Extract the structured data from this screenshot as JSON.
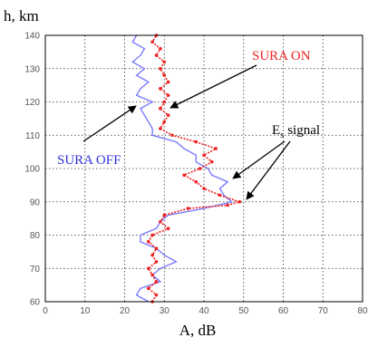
{
  "chart_data": {
    "type": "line",
    "ylabel": "h, km",
    "xlabel": "A, dB",
    "xlim": [
      0,
      80
    ],
    "ylim": [
      60,
      140
    ],
    "xticks": [
      "0",
      "10",
      "20",
      "30",
      "40",
      "50",
      "60",
      "70",
      "80"
    ],
    "yticks": [
      "60",
      "70",
      "80",
      "90",
      "100",
      "110",
      "120",
      "130",
      "140"
    ],
    "grid": true,
    "series": [
      {
        "name": "SURA OFF",
        "color": "#7b7bff",
        "points": [
          [
            26,
            60
          ],
          [
            23,
            62
          ],
          [
            24,
            64
          ],
          [
            29,
            66
          ],
          [
            27,
            68
          ],
          [
            29,
            70
          ],
          [
            33,
            72
          ],
          [
            30,
            74
          ],
          [
            28,
            76
          ],
          [
            24,
            78
          ],
          [
            24,
            80
          ],
          [
            28,
            82
          ],
          [
            29,
            84
          ],
          [
            31,
            86
          ],
          [
            40,
            88
          ],
          [
            47,
            90
          ],
          [
            45,
            92
          ],
          [
            44,
            94
          ],
          [
            46,
            96
          ],
          [
            42,
            98
          ],
          [
            41,
            100
          ],
          [
            38,
            102
          ],
          [
            38,
            104
          ],
          [
            35,
            106
          ],
          [
            33,
            108
          ],
          [
            27,
            110
          ],
          [
            27,
            112
          ],
          [
            26,
            114
          ],
          [
            25,
            116
          ],
          [
            24,
            118
          ],
          [
            27,
            120
          ],
          [
            23,
            122
          ],
          [
            24,
            124
          ],
          [
            26,
            126
          ],
          [
            23,
            128
          ],
          [
            25,
            130
          ],
          [
            22,
            132
          ],
          [
            24,
            134
          ],
          [
            25,
            136
          ],
          [
            22,
            138
          ],
          [
            23,
            140
          ]
        ]
      },
      {
        "name": "SURA ON",
        "color": "#ee2222",
        "points": [
          [
            27,
            60
          ],
          [
            28,
            62
          ],
          [
            26,
            64
          ],
          [
            28,
            66
          ],
          [
            27,
            68
          ],
          [
            26,
            70
          ],
          [
            28,
            72
          ],
          [
            27,
            74
          ],
          [
            28,
            76
          ],
          [
            26,
            78
          ],
          [
            27,
            80
          ],
          [
            31,
            82
          ],
          [
            29,
            84
          ],
          [
            30,
            86
          ],
          [
            36,
            88
          ],
          [
            46,
            89
          ],
          [
            49,
            90
          ],
          [
            44,
            92
          ],
          [
            40,
            94
          ],
          [
            38,
            96
          ],
          [
            35,
            98
          ],
          [
            39,
            100
          ],
          [
            42,
            102
          ],
          [
            40,
            104
          ],
          [
            43,
            106
          ],
          [
            38,
            108
          ],
          [
            32,
            110
          ],
          [
            29,
            112
          ],
          [
            30,
            114
          ],
          [
            31,
            116
          ],
          [
            29,
            118
          ],
          [
            30,
            120
          ],
          [
            31,
            122
          ],
          [
            29,
            124
          ],
          [
            31,
            126
          ],
          [
            30,
            128
          ],
          [
            29,
            130
          ],
          [
            30,
            132
          ],
          [
            28,
            134
          ],
          [
            29,
            136
          ],
          [
            27,
            138
          ],
          [
            28,
            140
          ]
        ]
      }
    ],
    "annotations": [
      {
        "text": "SURA ON",
        "color": "#ee2222"
      },
      {
        "text": "SURA OFF",
        "color": "#3333dd"
      },
      {
        "text": "E",
        "sub": "s",
        "tail": " signal",
        "color": "#000000"
      }
    ]
  }
}
